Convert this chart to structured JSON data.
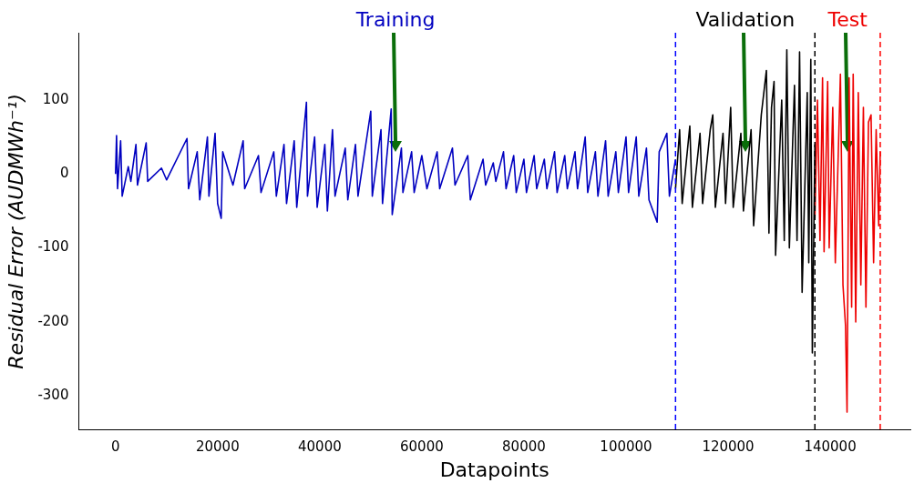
{
  "chart_data": {
    "type": "line",
    "xlabel": "Datapoints",
    "ylabel": "Residual Error (AUDMWh⁻¹)",
    "xlim": [
      -7200,
      155700
    ],
    "xticks": [
      0,
      20000,
      40000,
      60000,
      80000,
      100000,
      120000,
      140000
    ],
    "ylim": [
      -346,
      191
    ],
    "yticks": [
      -300,
      -200,
      -100,
      0,
      100
    ],
    "grid": false,
    "legend": false,
    "marker": "none",
    "line_style": "solid",
    "ref_lines": [
      {
        "axis": "x",
        "value": 109700,
        "color": "#0000ff",
        "line_style": "dashed"
      },
      {
        "axis": "x",
        "value": 137000,
        "color": "#000000",
        "line_style": "dashed"
      },
      {
        "axis": "x",
        "value": 149800,
        "color": "#ff0000",
        "line_style": "dashed"
      }
    ],
    "series": [
      {
        "name": "Training",
        "color": "#0000c0",
        "x": [
          0,
          200,
          400,
          1000,
          1300,
          2500,
          3000,
          4000,
          4300,
          6000,
          6300,
          9000,
          10000,
          14000,
          14300,
          16000,
          16500,
          18000,
          18300,
          19500,
          20000,
          20700,
          21000,
          23000,
          25000,
          25300,
          28000,
          28500,
          31000,
          31500,
          33000,
          33500,
          35000,
          35500,
          37400,
          37600,
          39000,
          39500,
          41000,
          41500,
          42500,
          43000,
          45000,
          45500,
          47000,
          47500,
          50000,
          50300,
          52000,
          52300,
          54000,
          54200,
          56000,
          56300,
          58000,
          58500,
          60000,
          61000,
          63000,
          63500,
          66000,
          66500,
          69000,
          69500,
          72000,
          72500,
          74000,
          74500,
          76000,
          76500,
          78000,
          78500,
          80000,
          80500,
          82000,
          82500,
          84000,
          84500,
          86000,
          86500,
          88000,
          88500,
          90000,
          90500,
          92000,
          92500,
          94000,
          94500,
          96000,
          96500,
          98000,
          98500,
          100000,
          100500,
          102000,
          102500,
          104000,
          104500,
          106100,
          106500,
          108000,
          108500,
          109700
        ],
        "values": [
          0,
          52,
          -20,
          45,
          -30,
          10,
          -10,
          40,
          -15,
          42,
          -10,
          8,
          -8,
          48,
          -20,
          30,
          -35,
          50,
          -30,
          55,
          -40,
          -60,
          30,
          -15,
          45,
          -20,
          25,
          -25,
          30,
          -30,
          40,
          -40,
          45,
          -45,
          97,
          -30,
          50,
          -45,
          40,
          -50,
          60,
          -30,
          35,
          -35,
          40,
          -30,
          85,
          -30,
          60,
          -40,
          88,
          -55,
          35,
          -25,
          30,
          -25,
          25,
          -20,
          30,
          -20,
          35,
          -15,
          25,
          -35,
          20,
          -15,
          15,
          -10,
          30,
          -20,
          25,
          -25,
          20,
          -25,
          25,
          -20,
          20,
          -20,
          30,
          -25,
          25,
          -20,
          30,
          -20,
          50,
          -25,
          30,
          -30,
          45,
          -30,
          30,
          -25,
          50,
          -25,
          50,
          -30,
          35,
          -35,
          -65,
          30,
          55,
          -30,
          20
        ]
      },
      {
        "name": "Validation",
        "color": "#000000",
        "x": [
          109700,
          110500,
          111000,
          112500,
          113000,
          114500,
          115000,
          116500,
          117000,
          117500,
          119000,
          119500,
          120500,
          121000,
          122500,
          123000,
          124500,
          125000,
          126500,
          127500,
          128000,
          128500,
          129000,
          129300,
          130500,
          131000,
          131500,
          132000,
          133000,
          133500,
          134000,
          134500,
          135500,
          135800,
          136200,
          136500,
          137000
        ],
        "values": [
          -20,
          60,
          -40,
          65,
          -45,
          55,
          -40,
          60,
          80,
          -45,
          55,
          -40,
          90,
          -45,
          55,
          -50,
          60,
          -70,
          80,
          140,
          -80,
          90,
          125,
          -110,
          100,
          -90,
          168,
          -100,
          120,
          -90,
          165,
          -160,
          110,
          -120,
          155,
          -242,
          40
        ]
      },
      {
        "name": "Test",
        "color": "#ee0000",
        "x": [
          137000,
          137500,
          138000,
          138500,
          138800,
          139500,
          139800,
          140500,
          141000,
          142000,
          142500,
          143000,
          143300,
          143700,
          144200,
          144500,
          145000,
          145500,
          146000,
          146500,
          147000,
          147500,
          148000,
          148500,
          149000,
          149500,
          149800
        ],
        "values": [
          -60,
          100,
          -90,
          130,
          -105,
          125,
          -100,
          90,
          -120,
          135,
          -150,
          -205,
          -322,
          130,
          -180,
          135,
          -200,
          110,
          -150,
          90,
          -180,
          70,
          80,
          -120,
          60,
          -70,
          30
        ]
      }
    ]
  }
}
